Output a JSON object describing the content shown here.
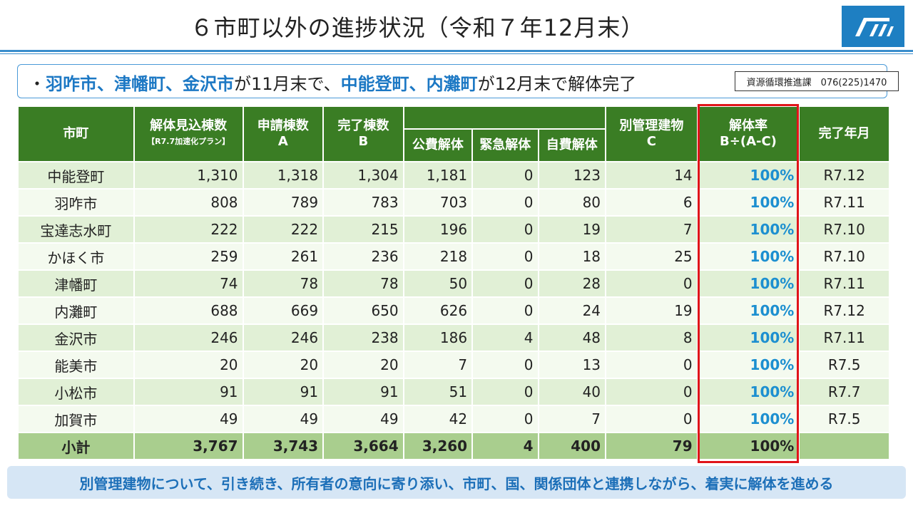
{
  "title": "６市町以外の進捗状況（令和７年12月末）",
  "logo_text": "石川県ロゴ",
  "bullet": {
    "dot": "・",
    "part1": "羽咋市、津幡町、金沢市",
    "part2": "が11月末で、",
    "part3": "中能登町、内灘町",
    "part4": "が12月末で解体完了"
  },
  "contact": "資源循環推進課　076(225)1470",
  "headers": {
    "city": "市町",
    "estimate": "解体見込棟数",
    "estimate_sub": "【R7.7加速化プラン】",
    "applied": "申請棟数",
    "applied_letter": "A",
    "done": "完了棟数",
    "done_letter": "B",
    "public": "公費解体",
    "emergency": "緊急解体",
    "self": "自費解体",
    "separate": "別管理建物",
    "separate_letter": "C",
    "rate": "解体率",
    "rate_formula": "B÷(A-C)",
    "month": "完了年月"
  },
  "rows": [
    {
      "name": "中能登町",
      "estimate": "1,310",
      "applied": "1,318",
      "done": "1,304",
      "public": "1,181",
      "emergency": "0",
      "self": "123",
      "separate": "14",
      "rate": "100%",
      "month": "R7.12"
    },
    {
      "name": "羽咋市",
      "estimate": "808",
      "applied": "789",
      "done": "783",
      "public": "703",
      "emergency": "0",
      "self": "80",
      "separate": "6",
      "rate": "100%",
      "month": "R7.11"
    },
    {
      "name": "宝達志水町",
      "estimate": "222",
      "applied": "222",
      "done": "215",
      "public": "196",
      "emergency": "0",
      "self": "19",
      "separate": "7",
      "rate": "100%",
      "month": "R7.10"
    },
    {
      "name": "かほく市",
      "estimate": "259",
      "applied": "261",
      "done": "236",
      "public": "218",
      "emergency": "0",
      "self": "18",
      "separate": "25",
      "rate": "100%",
      "month": "R7.10"
    },
    {
      "name": "津幡町",
      "estimate": "74",
      "applied": "78",
      "done": "78",
      "public": "50",
      "emergency": "0",
      "self": "28",
      "separate": "0",
      "rate": "100%",
      "month": "R7.11"
    },
    {
      "name": "内灘町",
      "estimate": "688",
      "applied": "669",
      "done": "650",
      "public": "626",
      "emergency": "0",
      "self": "24",
      "separate": "19",
      "rate": "100%",
      "month": "R7.12"
    },
    {
      "name": "金沢市",
      "estimate": "246",
      "applied": "246",
      "done": "238",
      "public": "186",
      "emergency": "4",
      "self": "48",
      "separate": "8",
      "rate": "100%",
      "month": "R7.11"
    },
    {
      "name": "能美市",
      "estimate": "20",
      "applied": "20",
      "done": "20",
      "public": "7",
      "emergency": "0",
      "self": "13",
      "separate": "0",
      "rate": "100%",
      "month": "R7.5"
    },
    {
      "name": "小松市",
      "estimate": "91",
      "applied": "91",
      "done": "91",
      "public": "51",
      "emergency": "0",
      "self": "40",
      "separate": "0",
      "rate": "100%",
      "month": "R7.7"
    },
    {
      "name": "加賀市",
      "estimate": "49",
      "applied": "49",
      "done": "49",
      "public": "42",
      "emergency": "0",
      "self": "7",
      "separate": "0",
      "rate": "100%",
      "month": "R7.5"
    }
  ],
  "total": {
    "name": "小計",
    "estimate": "3,767",
    "applied": "3,743",
    "done": "3,664",
    "public": "3,260",
    "emergency": "4",
    "self": "400",
    "separate": "79",
    "rate": "100%",
    "month": ""
  },
  "footer": "別管理建物について、引き続き、所有者の意向に寄り添い、市町、国、関係団体と連携しながら、着実に解体を進める",
  "colors": {
    "header_green": "#3a7d24",
    "highlight_blue": "#1c78c4",
    "rate_blue": "#1c8fd0",
    "redbox": "#e0141a",
    "footer_bg": "#d6e6f5"
  }
}
